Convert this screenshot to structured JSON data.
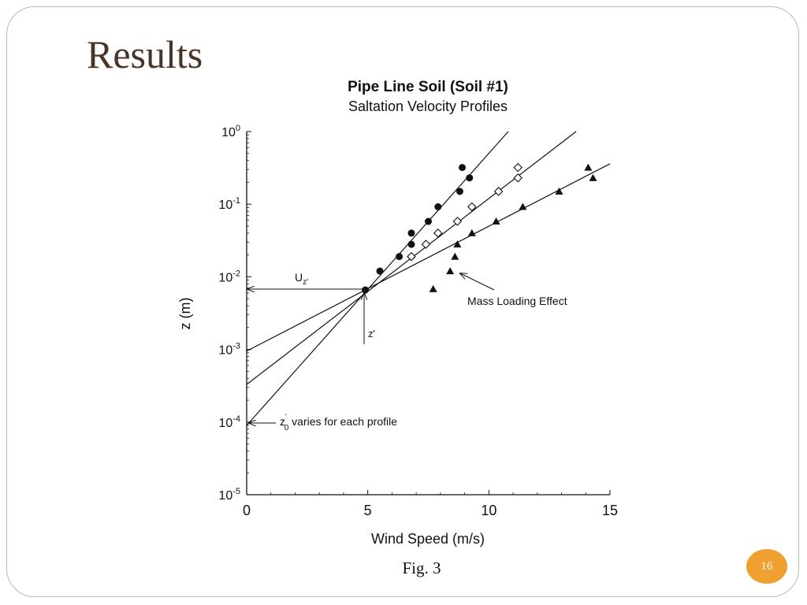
{
  "slide": {
    "title": "Results",
    "caption": "Fig. 3",
    "page_number": "16",
    "badge_color": "#f0a030",
    "title_color": "#4a3425"
  },
  "chart_data": {
    "type": "scatter",
    "title": "Pipe Line Soil (Soil #1)",
    "subtitle": "Saltation Velocity Profiles",
    "xlabel": "Wind Speed (m/s)",
    "ylabel": "z (m)",
    "xlim": [
      0,
      15
    ],
    "ylim": [
      1e-05,
      1
    ],
    "yscale": "log",
    "x_ticks": [
      "0",
      "5",
      "10",
      "15"
    ],
    "y_ticks": [
      {
        "base": "10",
        "exp": "0"
      },
      {
        "base": "10",
        "exp": "-1"
      },
      {
        "base": "10",
        "exp": "-2"
      },
      {
        "base": "10",
        "exp": "-3"
      },
      {
        "base": "10",
        "exp": "-4"
      },
      {
        "base": "10",
        "exp": "-5"
      }
    ],
    "grid": false,
    "series": [
      {
        "marker": "filled-circle",
        "x": [
          4.9,
          5.5,
          6.3,
          6.8,
          6.8,
          7.5,
          7.9,
          8.8,
          8.9,
          9.2
        ],
        "y": [
          0.0066,
          0.012,
          0.019,
          0.028,
          0.04,
          0.058,
          0.092,
          0.15,
          0.32,
          0.23
        ]
      },
      {
        "marker": "open-diamond",
        "x": [
          6.8,
          7.4,
          7.9,
          8.7,
          9.3,
          10.4,
          11.2,
          11.2
        ],
        "y": [
          0.019,
          0.028,
          0.04,
          0.058,
          0.092,
          0.15,
          0.23,
          0.32
        ]
      },
      {
        "marker": "filled-triangle",
        "x": [
          7.7,
          8.4,
          8.6,
          8.7,
          9.3,
          10.3,
          11.4,
          12.9,
          14.1,
          14.3
        ],
        "y": [
          0.0068,
          0.012,
          0.019,
          0.028,
          0.04,
          0.058,
          0.092,
          0.15,
          0.32,
          0.23
        ]
      }
    ],
    "fit_lines": [
      {
        "x": [
          0,
          10.8
        ],
        "y": [
          9e-05,
          1
        ]
      },
      {
        "x": [
          0,
          13.6
        ],
        "y": [
          0.00033,
          1
        ]
      },
      {
        "x": [
          0,
          15
        ],
        "y": [
          0.00095,
          0.36
        ]
      }
    ],
    "annotations": {
      "uz_label": "U",
      "uz_sub": "z'",
      "zprime_label": "z'",
      "z0_label": "z",
      "z0_sup": "'",
      "z0_sub": "0",
      "z0_text": " varies for each profile",
      "mass_loading": "Mass Loading Effect"
    }
  }
}
